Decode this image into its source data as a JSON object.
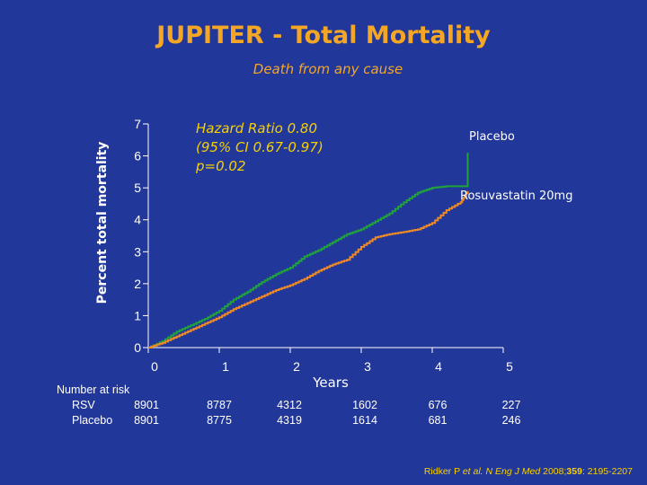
{
  "title": "JUPITER - Total Mortality",
  "subtitle": "Death from any cause",
  "annotation": {
    "line1": "Hazard Ratio 0.80",
    "line2": "(95% CI 0.67-0.97)",
    "line3": "p=0.02"
  },
  "risk_table": {
    "header": "Number at risk",
    "rows": [
      {
        "label": "RSV",
        "values": [
          "8901",
          "8787",
          "4312",
          "1602",
          "676",
          "227"
        ]
      },
      {
        "label": "Placebo",
        "values": [
          "8901",
          "8775",
          "4319",
          "1614",
          "681",
          "246"
        ]
      }
    ]
  },
  "citation": {
    "authors": "Ridker P",
    "etal": "et al.",
    "journal": "N Eng J Med",
    "year": "2008;",
    "volume": "359",
    "pages": ": 2195-2207"
  },
  "colors": {
    "background": "#22379a",
    "title": "#f5a623",
    "annotation": "#f5d000",
    "placebo": "#1fa33a",
    "rosuvastatin": "#f08a24",
    "axis": "#ffffff"
  },
  "chart_data": {
    "type": "line",
    "title": "JUPITER - Total Mortality",
    "subtitle": "Death from any cause",
    "xlabel": "Years",
    "ylabel": "Percent total mortality",
    "xlim": [
      0,
      5
    ],
    "ylim": [
      0,
      7
    ],
    "xticks": [
      "0",
      "1",
      "2",
      "3",
      "4",
      "5"
    ],
    "yticks": [
      "0",
      "1",
      "2",
      "3",
      "4",
      "5",
      "6",
      "7"
    ],
    "grid": false,
    "legend": "direct labels at line ends",
    "series": [
      {
        "name": "Placebo",
        "color": "#1fa33a",
        "x": [
          0,
          0.2,
          0.4,
          0.6,
          0.8,
          1.0,
          1.2,
          1.4,
          1.6,
          1.8,
          2.0,
          2.2,
          2.4,
          2.6,
          2.8,
          3.0,
          3.2,
          3.4,
          3.6,
          3.8,
          4.0,
          4.2,
          4.4,
          4.5,
          4.5
        ],
        "y": [
          0,
          0.2,
          0.5,
          0.7,
          0.9,
          1.15,
          1.5,
          1.75,
          2.05,
          2.3,
          2.5,
          2.85,
          3.05,
          3.3,
          3.55,
          3.7,
          3.95,
          4.2,
          4.55,
          4.85,
          5.0,
          5.05,
          5.05,
          5.05,
          6.1
        ]
      },
      {
        "name": "Rosuvastatin 20mg",
        "color": "#f08a24",
        "x": [
          0,
          0.2,
          0.4,
          0.6,
          0.8,
          1.0,
          1.2,
          1.4,
          1.6,
          1.8,
          2.0,
          2.2,
          2.4,
          2.6,
          2.8,
          3.0,
          3.2,
          3.4,
          3.6,
          3.8,
          4.0,
          4.2,
          4.4,
          4.5
        ],
        "y": [
          0,
          0.15,
          0.35,
          0.55,
          0.75,
          0.95,
          1.2,
          1.4,
          1.6,
          1.8,
          1.95,
          2.15,
          2.4,
          2.6,
          2.75,
          3.15,
          3.45,
          3.55,
          3.62,
          3.7,
          3.9,
          4.3,
          4.55,
          4.9
        ]
      }
    ]
  }
}
